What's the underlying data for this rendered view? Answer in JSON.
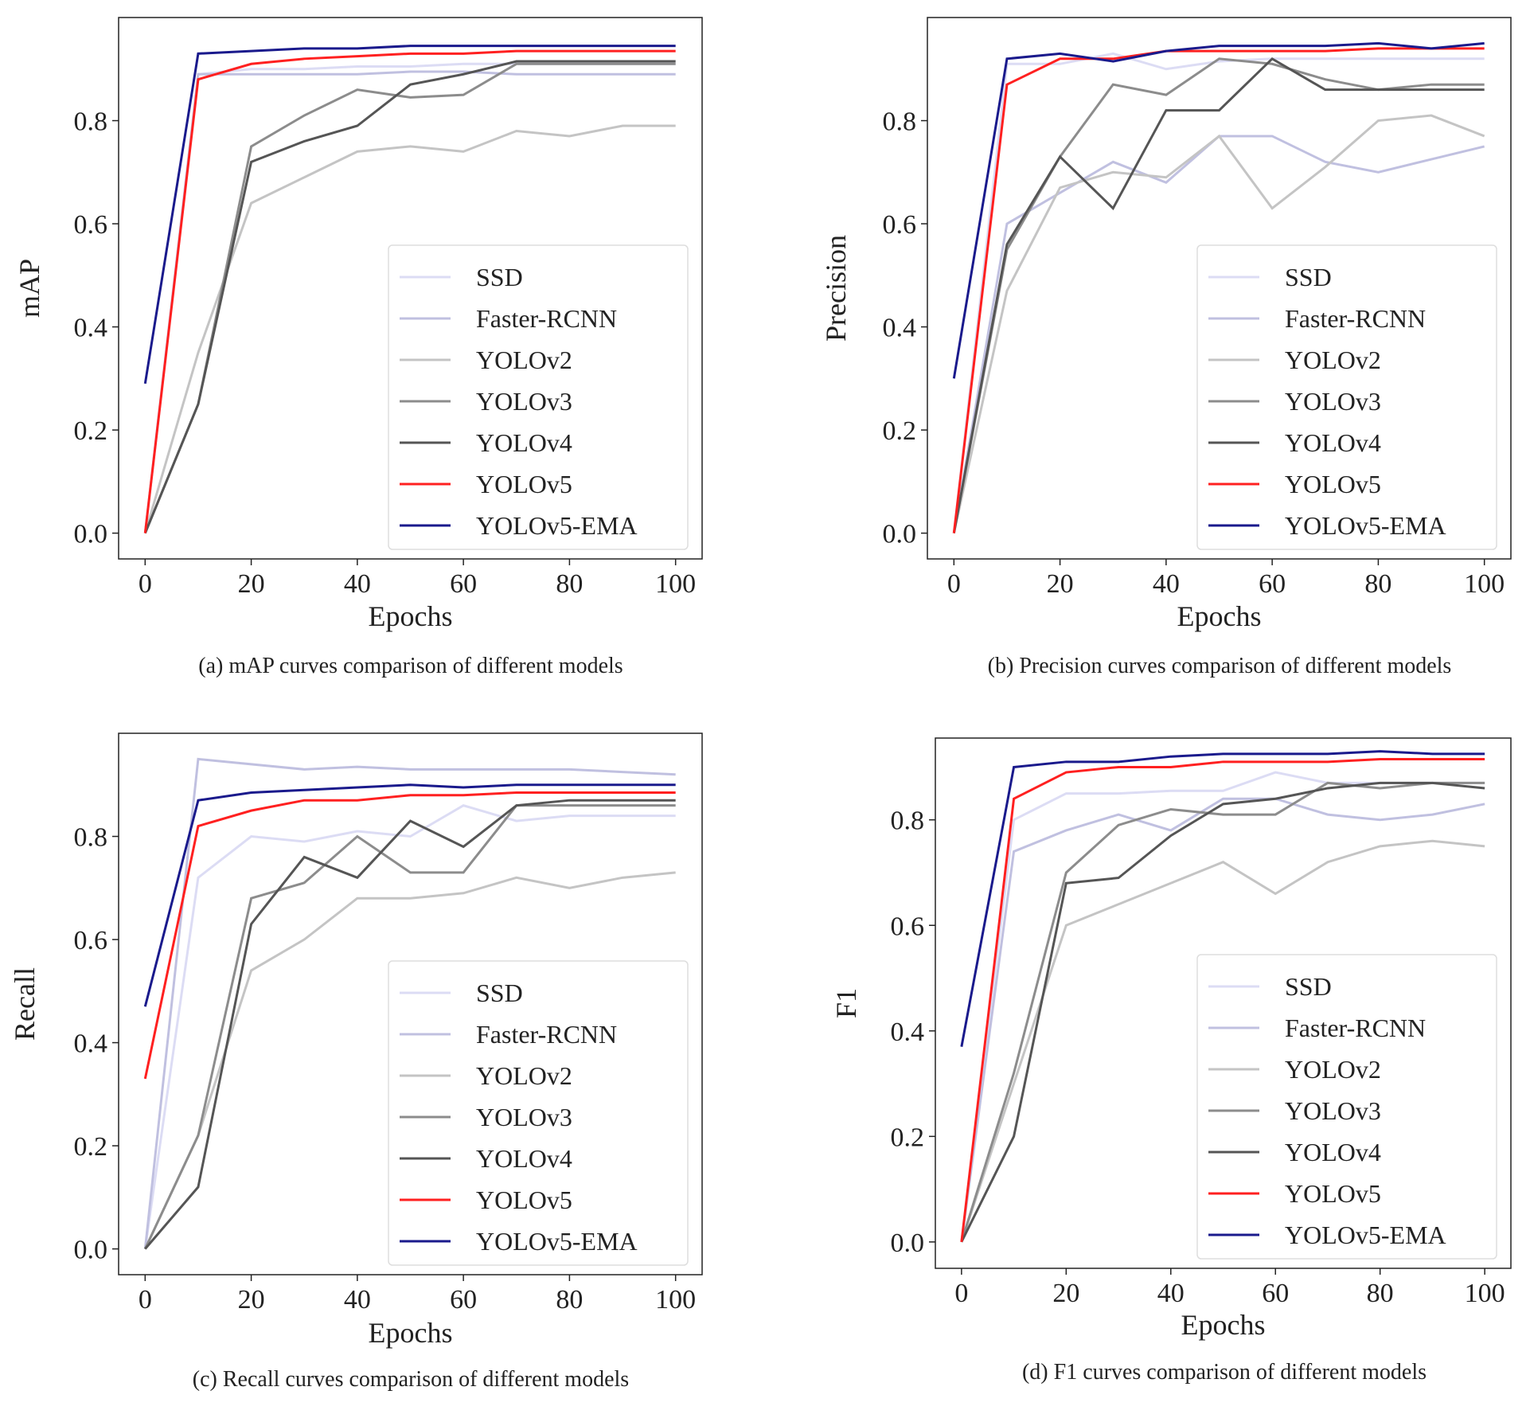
{
  "chart_data": [
    {
      "type": "line",
      "title": "(a)  mAP curves comparison of different models",
      "xlabel": "Epochs",
      "ylabel": "mAP",
      "x": [
        0,
        10,
        20,
        30,
        40,
        50,
        60,
        70,
        80,
        90,
        100
      ],
      "xlim": [
        -5,
        105
      ],
      "ylim": [
        -0.05,
        1.0
      ],
      "xticks": [
        0,
        20,
        40,
        60,
        80,
        100
      ],
      "yticks": [
        {
          "value": 0,
          "label": "0.0"
        },
        0.2,
        0.4,
        0.6,
        0.8
      ],
      "legend": "lower right",
      "series": [
        {
          "name": "SSD",
          "color": "#dcdcf4",
          "values": [
            0,
            0.89,
            0.9,
            0.9,
            0.905,
            0.905,
            0.91,
            0.91,
            0.91,
            0.91,
            0.91
          ]
        },
        {
          "name": "Faster-RCNN",
          "color": "#c0c0e0",
          "values": [
            0,
            0.89,
            0.89,
            0.89,
            0.89,
            0.895,
            0.895,
            0.89,
            0.89,
            0.89,
            0.89
          ]
        },
        {
          "name": "YOLOv2",
          "color": "#c4c4c4",
          "values": [
            0,
            0.35,
            0.64,
            0.69,
            0.74,
            0.75,
            0.74,
            0.78,
            0.77,
            0.79,
            0.79
          ]
        },
        {
          "name": "YOLOv3",
          "color": "#8c8c8c",
          "values": [
            0,
            0.25,
            0.75,
            0.81,
            0.86,
            0.845,
            0.85,
            0.91,
            0.91,
            0.91,
            0.91
          ]
        },
        {
          "name": "YOLOv4",
          "color": "#555555",
          "values": [
            0,
            0.25,
            0.72,
            0.76,
            0.79,
            0.87,
            0.89,
            0.915,
            0.915,
            0.915,
            0.915
          ]
        },
        {
          "name": "YOLOv5",
          "color": "#ff2020",
          "values": [
            0,
            0.88,
            0.91,
            0.92,
            0.925,
            0.93,
            0.93,
            0.935,
            0.935,
            0.935,
            0.935
          ]
        },
        {
          "name": "YOLOv5-EMA",
          "color": "#1a1a8c",
          "values": [
            0.29,
            0.93,
            0.935,
            0.94,
            0.94,
            0.945,
            0.945,
            0.945,
            0.945,
            0.945,
            0.945
          ]
        }
      ]
    },
    {
      "type": "line",
      "title": "(b)  Precision curves comparison of different models",
      "xlabel": "Epochs",
      "ylabel": "Precision",
      "x": [
        0,
        10,
        20,
        30,
        40,
        50,
        60,
        70,
        80,
        90,
        100
      ],
      "xlim": [
        -5,
        105
      ],
      "ylim": [
        -0.05,
        1.0
      ],
      "xticks": [
        0,
        20,
        40,
        60,
        80,
        100
      ],
      "yticks": [
        {
          "value": 0,
          "label": "0.0"
        },
        0.2,
        0.4,
        0.6,
        0.8
      ],
      "legend": "lower right",
      "series": [
        {
          "name": "SSD",
          "color": "#dcdcf4",
          "values": [
            0,
            0.91,
            0.91,
            0.93,
            0.9,
            0.915,
            0.92,
            0.92,
            0.92,
            0.92,
            0.92
          ]
        },
        {
          "name": "Faster-RCNN",
          "color": "#c0c0e0",
          "values": [
            0,
            0.6,
            0.66,
            0.72,
            0.68,
            0.77,
            0.77,
            0.72,
            0.7,
            0.725,
            0.75
          ]
        },
        {
          "name": "YOLOv2",
          "color": "#c4c4c4",
          "values": [
            0,
            0.47,
            0.67,
            0.7,
            0.69,
            0.77,
            0.63,
            0.71,
            0.8,
            0.81,
            0.77
          ]
        },
        {
          "name": "YOLOv3",
          "color": "#8c8c8c",
          "values": [
            0,
            0.55,
            0.73,
            0.87,
            0.85,
            0.92,
            0.91,
            0.88,
            0.86,
            0.87,
            0.87
          ]
        },
        {
          "name": "YOLOv4",
          "color": "#555555",
          "values": [
            0,
            0.56,
            0.73,
            0.63,
            0.82,
            0.82,
            0.92,
            0.86,
            0.86,
            0.86,
            0.86
          ]
        },
        {
          "name": "YOLOv5",
          "color": "#ff2020",
          "values": [
            0,
            0.87,
            0.92,
            0.92,
            0.935,
            0.935,
            0.935,
            0.935,
            0.94,
            0.94,
            0.94
          ]
        },
        {
          "name": "YOLOv5-EMA",
          "color": "#1a1a8c",
          "values": [
            0.3,
            0.92,
            0.93,
            0.915,
            0.935,
            0.945,
            0.945,
            0.945,
            0.95,
            0.94,
            0.95
          ]
        }
      ]
    },
    {
      "type": "line",
      "title": "(c)  Recall curves comparison of different models",
      "xlabel": "Epochs",
      "ylabel": "Recall",
      "x": [
        0,
        10,
        20,
        30,
        40,
        50,
        60,
        70,
        80,
        90,
        100
      ],
      "xlim": [
        -5,
        105
      ],
      "ylim": [
        -0.05,
        1.0
      ],
      "xticks": [
        0,
        20,
        40,
        60,
        80,
        100
      ],
      "yticks": [
        {
          "value": 0,
          "label": "0.0"
        },
        0.2,
        0.4,
        0.6,
        0.8
      ],
      "legend": "lower right",
      "series": [
        {
          "name": "SSD",
          "color": "#dcdcf4",
          "values": [
            0,
            0.72,
            0.8,
            0.79,
            0.81,
            0.8,
            0.86,
            0.83,
            0.84,
            0.84,
            0.84
          ]
        },
        {
          "name": "Faster-RCNN",
          "color": "#c0c0e0",
          "values": [
            0,
            0.95,
            0.94,
            0.93,
            0.935,
            0.93,
            0.93,
            0.93,
            0.93,
            0.925,
            0.92
          ]
        },
        {
          "name": "YOLOv2",
          "color": "#c4c4c4",
          "values": [
            0,
            0.22,
            0.54,
            0.6,
            0.68,
            0.68,
            0.69,
            0.72,
            0.7,
            0.72,
            0.73
          ]
        },
        {
          "name": "YOLOv3",
          "color": "#8c8c8c",
          "values": [
            0,
            0.22,
            0.68,
            0.71,
            0.8,
            0.73,
            0.73,
            0.86,
            0.86,
            0.86,
            0.86
          ]
        },
        {
          "name": "YOLOv4",
          "color": "#555555",
          "values": [
            0,
            0.12,
            0.63,
            0.76,
            0.72,
            0.83,
            0.78,
            0.86,
            0.87,
            0.87,
            0.87
          ]
        },
        {
          "name": "YOLOv5",
          "color": "#ff2020",
          "values": [
            0.33,
            0.82,
            0.85,
            0.87,
            0.87,
            0.88,
            0.88,
            0.885,
            0.885,
            0.885,
            0.885
          ]
        },
        {
          "name": "YOLOv5-EMA",
          "color": "#1a1a8c",
          "values": [
            0.47,
            0.87,
            0.885,
            0.89,
            0.895,
            0.9,
            0.895,
            0.9,
            0.9,
            0.9,
            0.9
          ]
        }
      ]
    },
    {
      "type": "line",
      "title": "(d)  F1 curves comparison of different models",
      "xlabel": "Epochs",
      "ylabel": "F1",
      "x": [
        0,
        10,
        20,
        30,
        40,
        50,
        60,
        70,
        80,
        90,
        100
      ],
      "xlim": [
        -5,
        105
      ],
      "ylim": [
        -0.05,
        0.955
      ],
      "xticks": [
        0,
        20,
        40,
        60,
        80,
        100
      ],
      "yticks": [
        {
          "value": 0,
          "label": "0.0"
        },
        0.2,
        0.4,
        0.6,
        0.8
      ],
      "legend": "lower right",
      "series": [
        {
          "name": "SSD",
          "color": "#dcdcf4",
          "values": [
            0,
            0.8,
            0.85,
            0.85,
            0.855,
            0.855,
            0.89,
            0.87,
            0.87,
            0.87,
            0.87
          ]
        },
        {
          "name": "Faster-RCNN",
          "color": "#c0c0e0",
          "values": [
            0,
            0.74,
            0.78,
            0.81,
            0.78,
            0.84,
            0.84,
            0.81,
            0.8,
            0.81,
            0.83
          ]
        },
        {
          "name": "YOLOv2",
          "color": "#c4c4c4",
          "values": [
            0,
            0.3,
            0.6,
            0.64,
            0.68,
            0.72,
            0.66,
            0.72,
            0.75,
            0.76,
            0.75
          ]
        },
        {
          "name": "YOLOv3",
          "color": "#8c8c8c",
          "values": [
            0,
            0.32,
            0.7,
            0.79,
            0.82,
            0.81,
            0.81,
            0.87,
            0.86,
            0.87,
            0.87
          ]
        },
        {
          "name": "YOLOv4",
          "color": "#555555",
          "values": [
            0,
            0.2,
            0.68,
            0.69,
            0.77,
            0.83,
            0.84,
            0.86,
            0.87,
            0.87,
            0.86
          ]
        },
        {
          "name": "YOLOv5",
          "color": "#ff2020",
          "values": [
            0,
            0.84,
            0.89,
            0.9,
            0.9,
            0.91,
            0.91,
            0.91,
            0.915,
            0.915,
            0.915
          ]
        },
        {
          "name": "YOLOv5-EMA",
          "color": "#1a1a8c",
          "values": [
            0.37,
            0.9,
            0.91,
            0.91,
            0.92,
            0.925,
            0.925,
            0.925,
            0.93,
            0.925,
            0.925
          ]
        }
      ]
    }
  ]
}
